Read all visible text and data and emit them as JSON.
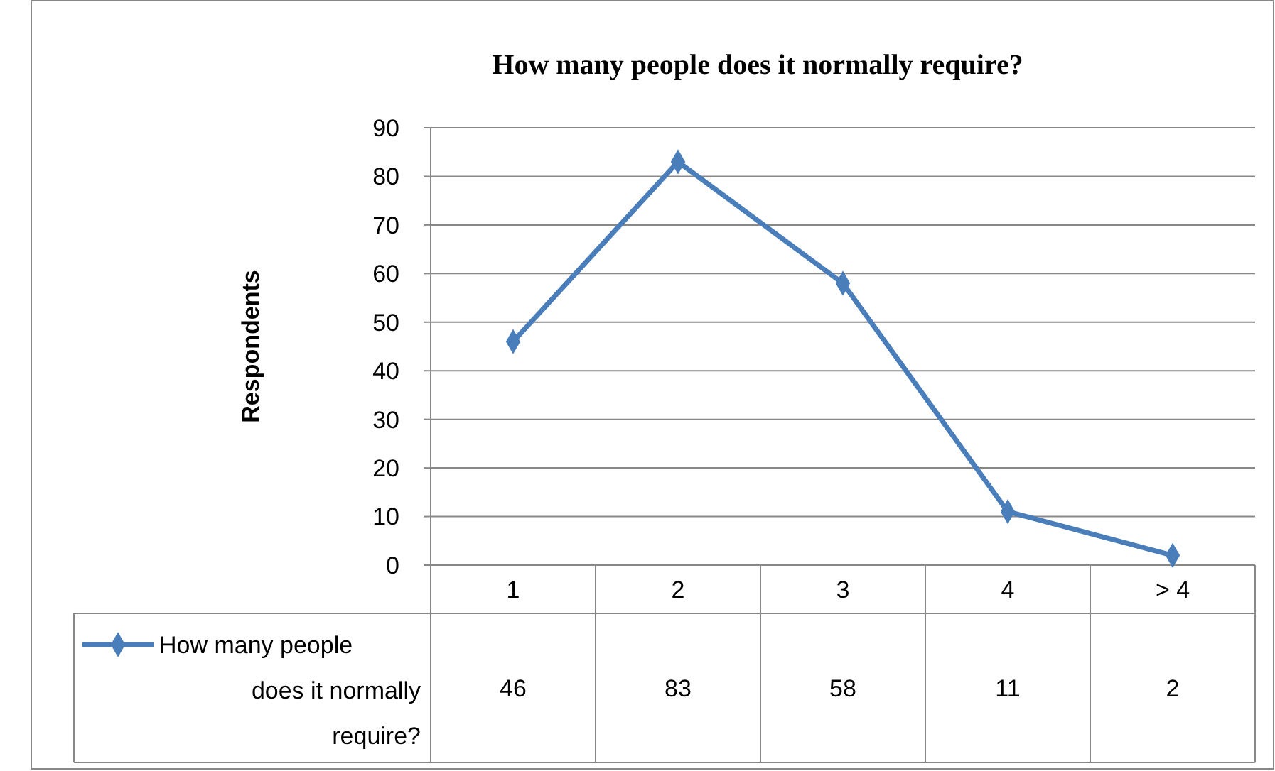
{
  "chart_data": {
    "type": "line",
    "title": "How many people does it normally require?",
    "ylabel": "Respondents",
    "categories": [
      "1",
      "2",
      "3",
      "4",
      "> 4"
    ],
    "series": [
      {
        "name": "How many people does it normally require?",
        "color": "#4a7ebb",
        "values": [
          46,
          83,
          58,
          11,
          2
        ]
      }
    ],
    "ylim": [
      0,
      90
    ],
    "yticks": [
      0,
      10,
      20,
      30,
      40,
      50,
      60,
      70,
      80,
      90
    ],
    "grid": "y",
    "marker": "diamond",
    "line_style": "solid",
    "legend": "bottom left",
    "data_labels": true
  }
}
